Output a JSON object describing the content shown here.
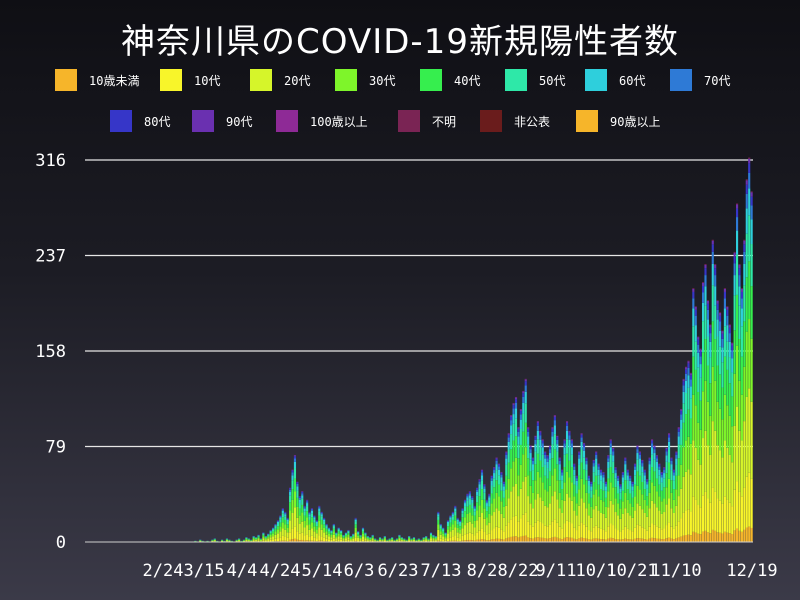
{
  "chart_data": {
    "type": "bar",
    "stacked": true,
    "title": "神奈川県のCOVID-19新規陽性者数",
    "xlabel": "",
    "ylabel": "",
    "ylim": [
      0,
      316
    ],
    "yticks": [
      0,
      79,
      158,
      237,
      316
    ],
    "xtick_labels": [
      "2/24",
      "3/15",
      "4/4",
      "4/24",
      "5/14",
      "6/3",
      "6/23",
      "7/13",
      "8/2",
      "8/22",
      "9/11",
      "10/1",
      "10/21",
      "11/10",
      "12/19"
    ],
    "grid": "horizontal",
    "legend_placement": "top",
    "series": [
      {
        "name": "10歳未満",
        "color": "#f6b52a"
      },
      {
        "name": "10代",
        "color": "#f8f52a"
      },
      {
        "name": "20代",
        "color": "#d6f52a"
      },
      {
        "name": "30代",
        "color": "#7ef52a"
      },
      {
        "name": "40代",
        "color": "#36ee4e"
      },
      {
        "name": "50代",
        "color": "#2ee8a8"
      },
      {
        "name": "60代",
        "color": "#2ecfdc"
      },
      {
        "name": "70代",
        "color": "#2e7ad6"
      },
      {
        "name": "80代",
        "color": "#3636c8"
      },
      {
        "name": "90代",
        "color": "#6a30b0"
      },
      {
        "name": "100歳以上",
        "color": "#8e2a96"
      },
      {
        "name": "不明",
        "color": "#7a2454"
      },
      {
        "name": "非公表",
        "color": "#6a1c1c"
      },
      {
        "name": "90歳以上",
        "color": "#f6b52a"
      }
    ],
    "daily_totals_approx": [
      0,
      0,
      0,
      0,
      0,
      0,
      0,
      0,
      0,
      0,
      0,
      0,
      0,
      0,
      0,
      0,
      0,
      0,
      0,
      0,
      0,
      0,
      0,
      0,
      0,
      0,
      0,
      0,
      0,
      0,
      0,
      0,
      0,
      0,
      0,
      0,
      0,
      0,
      0,
      0,
      0,
      0,
      0,
      0,
      0,
      1,
      0,
      2,
      1,
      0,
      1,
      0,
      2,
      3,
      1,
      0,
      2,
      1,
      3,
      2,
      1,
      0,
      2,
      3,
      1,
      2,
      4,
      3,
      2,
      5,
      4,
      6,
      3,
      8,
      5,
      7,
      10,
      12,
      15,
      18,
      22,
      28,
      25,
      20,
      45,
      60,
      72,
      50,
      38,
      42,
      30,
      35,
      25,
      28,
      22,
      18,
      30,
      25,
      20,
      15,
      12,
      10,
      15,
      8,
      12,
      10,
      6,
      8,
      10,
      5,
      7,
      20,
      9,
      6,
      12,
      8,
      5,
      4,
      6,
      3,
      2,
      4,
      3,
      5,
      2,
      3,
      4,
      2,
      3,
      6,
      4,
      3,
      2,
      5,
      3,
      4,
      2,
      3,
      2,
      4,
      5,
      3,
      8,
      6,
      5,
      25,
      15,
      12,
      8,
      18,
      22,
      25,
      30,
      20,
      18,
      28,
      35,
      40,
      42,
      38,
      30,
      45,
      52,
      60,
      48,
      35,
      40,
      55,
      62,
      70,
      65,
      58,
      50,
      75,
      90,
      105,
      115,
      120,
      95,
      110,
      125,
      135,
      95,
      80,
      70,
      88,
      100,
      92,
      85,
      75,
      72,
      80,
      95,
      105,
      88,
      70,
      60,
      85,
      100,
      92,
      85,
      65,
      55,
      75,
      90,
      82,
      70,
      55,
      50,
      68,
      75,
      65,
      60,
      58,
      50,
      72,
      85,
      78,
      62,
      55,
      48,
      58,
      70,
      60,
      55,
      50,
      65,
      80,
      75,
      68,
      60,
      52,
      70,
      85,
      80,
      72,
      65,
      58,
      62,
      78,
      90,
      70,
      60,
      75,
      95,
      110,
      135,
      145,
      150,
      140,
      210,
      195,
      170,
      160,
      215,
      230,
      200,
      180,
      250,
      230,
      200,
      190,
      175,
      210,
      195,
      180,
      165,
      240,
      280,
      230,
      210,
      250,
      300,
      318,
      290
    ]
  }
}
